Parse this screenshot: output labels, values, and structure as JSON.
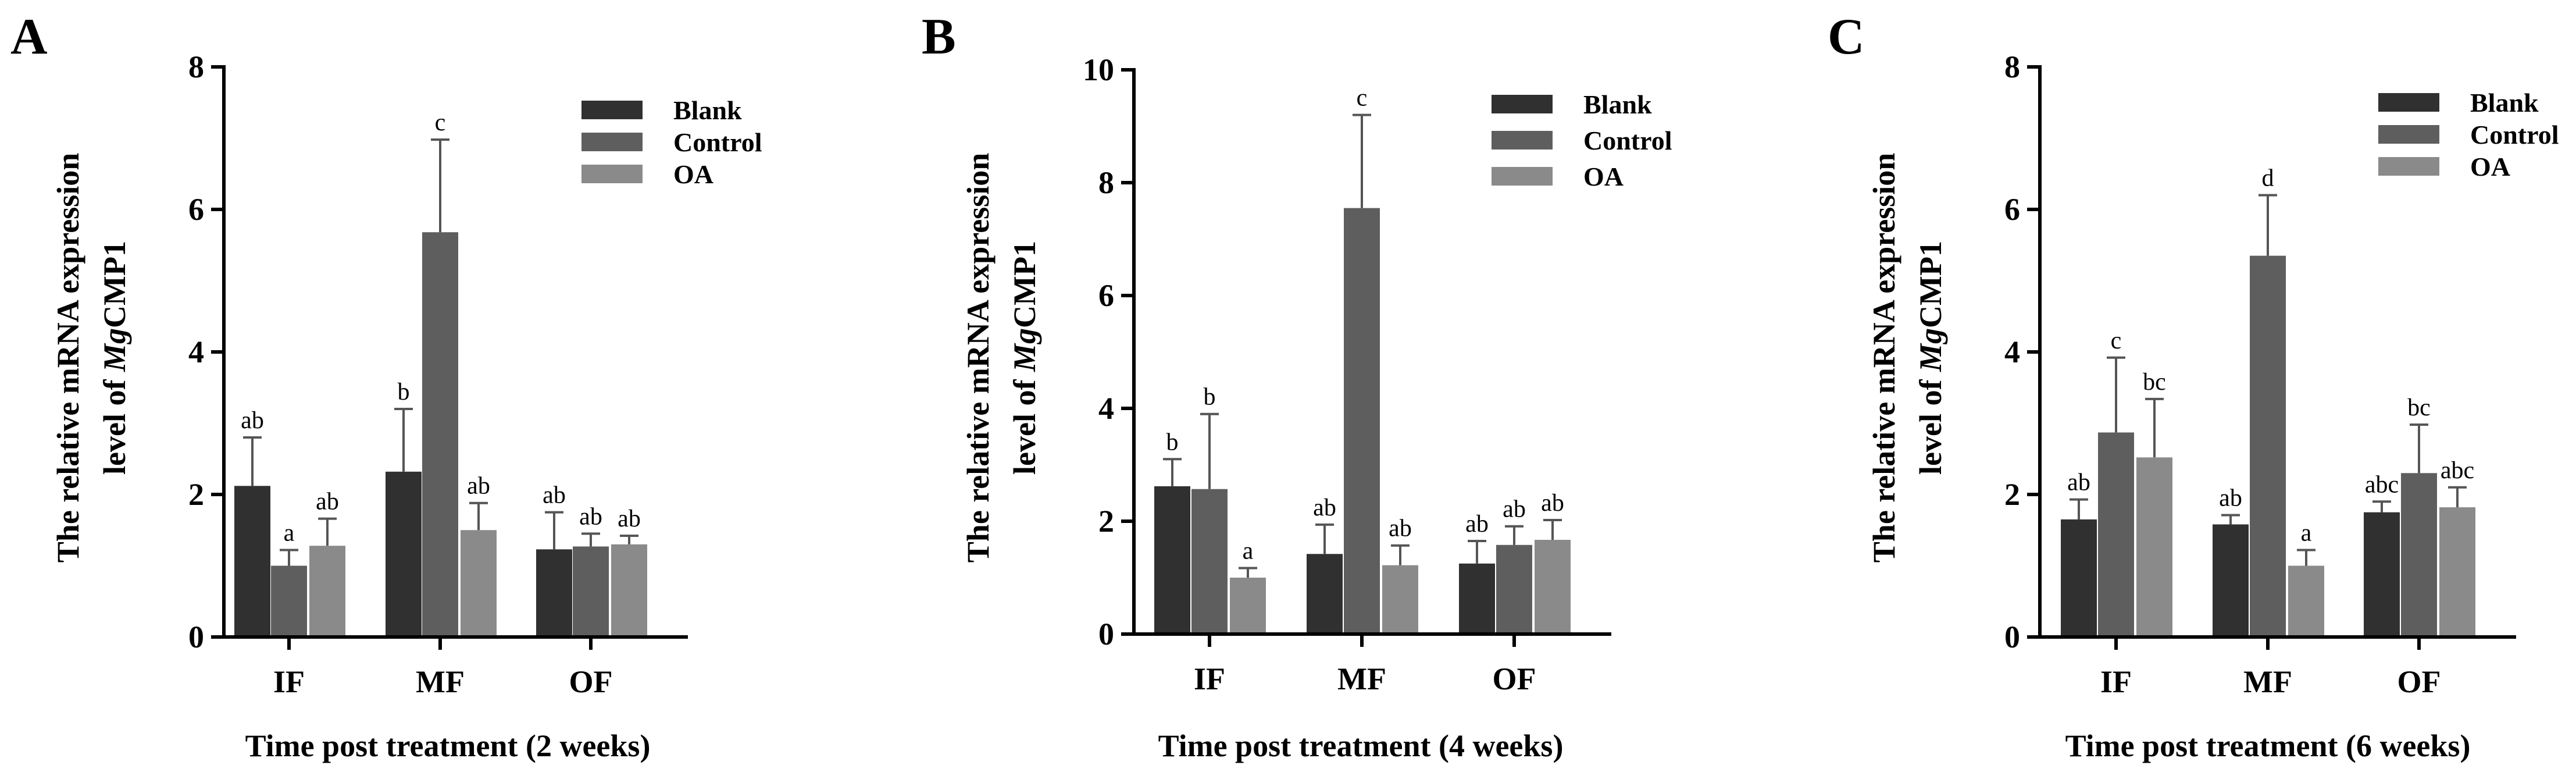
{
  "colors": {
    "Blank": "#303030",
    "Control": "#5e5e5e",
    "OA": "#8a8a8a",
    "axis": "#000000",
    "error_bar": "#555555"
  },
  "chart_data": [
    {
      "type": "bar",
      "panel": "A",
      "xlabel": "Time post treatment (2 weeks)",
      "ylabel": {
        "line1": "The relative mRNA expression",
        "line2_prefix": "level of ",
        "line2_italic": "Mg",
        "line2_suffix": "CMP1"
      },
      "ylim": [
        0,
        8
      ],
      "yticks": [
        0,
        2,
        4,
        6,
        8
      ],
      "categories": [
        "IF",
        "MF",
        "OF"
      ],
      "legend_position": "top-right",
      "series": [
        {
          "name": "Blank",
          "values": [
            2.12,
            2.32,
            1.23
          ],
          "errors": [
            0.68,
            0.88,
            0.52
          ],
          "labels": [
            "ab",
            "b",
            "ab"
          ]
        },
        {
          "name": "Control",
          "values": [
            1.0,
            5.68,
            1.27
          ],
          "errors": [
            0.22,
            1.3,
            0.18
          ],
          "labels": [
            "a",
            "c",
            "ab"
          ]
        },
        {
          "name": "OA",
          "values": [
            1.28,
            1.5,
            1.3
          ],
          "errors": [
            0.38,
            0.38,
            0.12
          ],
          "labels": [
            "ab",
            "ab",
            "ab"
          ]
        }
      ]
    },
    {
      "type": "bar",
      "panel": "B",
      "xlabel": "Time post treatment (4 weeks)",
      "ylabel": {
        "line1": "The relative mRNA expression",
        "line2_prefix": "level of ",
        "line2_italic": "Mg",
        "line2_suffix": "CMP1"
      },
      "ylim": [
        0,
        10
      ],
      "yticks": [
        0,
        2,
        4,
        6,
        8,
        10
      ],
      "categories": [
        "IF",
        "MF",
        "OF"
      ],
      "legend_position": "top-right",
      "series": [
        {
          "name": "Blank",
          "values": [
            2.62,
            1.42,
            1.25
          ],
          "errors": [
            0.48,
            0.52,
            0.4
          ],
          "labels": [
            "b",
            "ab",
            "ab"
          ]
        },
        {
          "name": "Control",
          "values": [
            2.57,
            7.55,
            1.58
          ],
          "errors": [
            1.33,
            1.65,
            0.33
          ],
          "labels": [
            "b",
            "c",
            "ab"
          ]
        },
        {
          "name": "OA",
          "values": [
            1.0,
            1.22,
            1.67
          ],
          "errors": [
            0.17,
            0.35,
            0.35
          ],
          "labels": [
            "a",
            "ab",
            "ab"
          ]
        }
      ]
    },
    {
      "type": "bar",
      "panel": "C",
      "xlabel": "Time post treatment (6 weeks)",
      "ylabel": {
        "line1": "The relative mRNA expression",
        "line2_prefix": "level of ",
        "line2_italic": "Mg",
        "line2_suffix": "CMP1"
      },
      "ylim": [
        0,
        8
      ],
      "yticks": [
        0,
        2,
        4,
        6,
        8
      ],
      "categories": [
        "IF",
        "MF",
        "OF"
      ],
      "legend_position": "top-right",
      "series": [
        {
          "name": "Blank",
          "values": [
            1.65,
            1.58,
            1.75
          ],
          "errors": [
            0.28,
            0.13,
            0.15
          ],
          "labels": [
            "ab",
            "ab",
            "abc"
          ]
        },
        {
          "name": "Control",
          "values": [
            2.87,
            5.35,
            2.3
          ],
          "errors": [
            1.05,
            0.85,
            0.68
          ],
          "labels": [
            "c",
            "d",
            "bc"
          ]
        },
        {
          "name": "OA",
          "values": [
            2.52,
            1.0,
            1.82
          ],
          "errors": [
            0.82,
            0.22,
            0.28
          ],
          "labels": [
            "bc",
            "a",
            "abc"
          ]
        }
      ]
    }
  ]
}
